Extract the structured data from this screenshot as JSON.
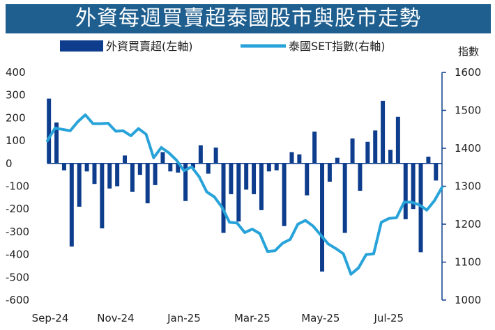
{
  "chart_data": {
    "type": "bar+line",
    "title": "外資每週買賣超泰國股市與股市走勢",
    "legend": [
      {
        "name": "外資買賣超(左軸)",
        "kind": "bar",
        "color": "#0d3d8c"
      },
      {
        "name": "泰國SET指數(右軸)",
        "kind": "line",
        "color": "#27a3d9"
      }
    ],
    "left_axis": {
      "min": -600,
      "max": 400,
      "ticks": [
        400,
        300,
        200,
        100,
        0,
        -100,
        -200,
        -300,
        -400,
        -500,
        -600
      ]
    },
    "right_axis": {
      "label": "指數",
      "min": 1000,
      "max": 1600,
      "ticks": [
        1600,
        1500,
        1400,
        1300,
        1200,
        1100,
        1000
      ]
    },
    "x_tick_labels": [
      "Sep-24",
      "Nov-24",
      "Jan-25",
      "Mar-25",
      "May-25",
      "Jul-25"
    ],
    "x_tick_weeks": [
      0,
      9,
      18,
      27,
      36,
      45
    ],
    "series": [
      {
        "name": "外資買賣超(左軸)",
        "type": "bar",
        "axis": "left",
        "values": [
          285,
          180,
          -30,
          -365,
          -190,
          -35,
          -90,
          -285,
          -110,
          -100,
          35,
          -125,
          -50,
          -175,
          -95,
          50,
          -35,
          -40,
          -165,
          -20,
          80,
          -45,
          70,
          -305,
          -135,
          -255,
          -115,
          -135,
          -205,
          -35,
          -30,
          -275,
          50,
          40,
          -140,
          140,
          -475,
          -80,
          25,
          -305,
          110,
          -120,
          95,
          145,
          275,
          60,
          205,
          -245,
          -200,
          -390,
          30,
          -75
        ]
      },
      {
        "name": "泰國SET指數(右軸)",
        "type": "line",
        "axis": "right",
        "values": [
          1420,
          1453,
          1450,
          1446,
          1470,
          1488,
          1465,
          1465,
          1466,
          1445,
          1446,
          1433,
          1452,
          1437,
          1375,
          1402,
          1388,
          1369,
          1341,
          1351,
          1325,
          1285,
          1272,
          1245,
          1205,
          1203,
          1178,
          1187,
          1175,
          1128,
          1130,
          1150,
          1160,
          1200,
          1210,
          1195,
          1172,
          1148,
          1136,
          1122,
          1068,
          1085,
          1120,
          1122,
          1205,
          1215,
          1217,
          1258,
          1258,
          1251,
          1237,
          1262,
          1297
        ]
      }
    ]
  }
}
